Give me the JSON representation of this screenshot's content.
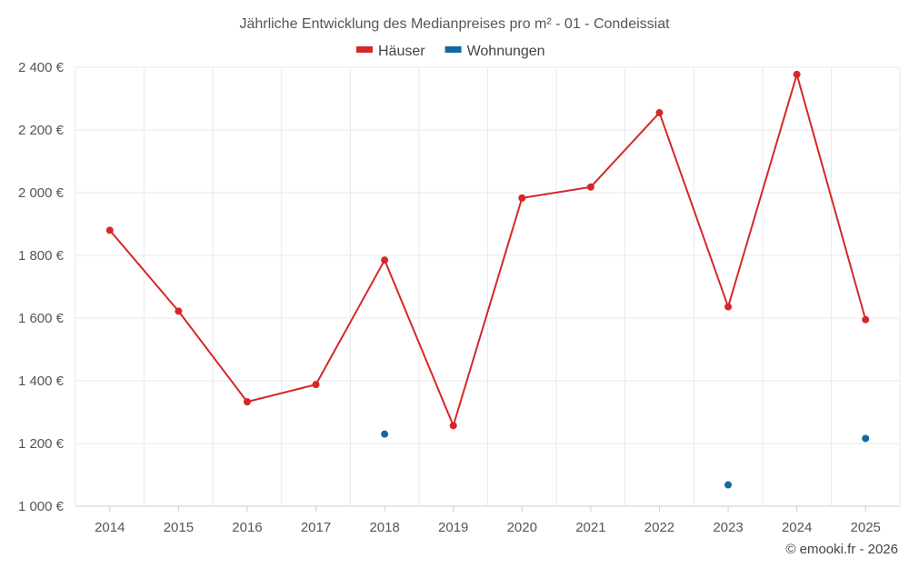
{
  "chart_data": {
    "type": "line",
    "title": "Jährliche Entwicklung des Medianpreises pro m² - 01 - Condeissiat",
    "categories": [
      "2014",
      "2015",
      "2016",
      "2017",
      "2018",
      "2019",
      "2020",
      "2021",
      "2022",
      "2023",
      "2024",
      "2025"
    ],
    "series": [
      {
        "name": "Häuser",
        "color": "#d62728",
        "line": true,
        "values": [
          1880,
          1622,
          1333,
          1388,
          1785,
          1257,
          1983,
          2018,
          2255,
          1636,
          2377,
          1595
        ]
      },
      {
        "name": "Wohnungen",
        "color": "#0f6aa3",
        "line": false,
        "values": [
          null,
          null,
          null,
          null,
          1230,
          null,
          null,
          null,
          null,
          1068,
          null,
          1216
        ]
      }
    ],
    "ylim": [
      1000,
      2400
    ],
    "yticks": [
      1000,
      1200,
      1400,
      1600,
      1800,
      2000,
      2200,
      2400
    ],
    "ytick_labels": [
      "1 000 €",
      "1 200 €",
      "1 400 €",
      "1 600 €",
      "1 800 €",
      "2 000 €",
      "2 200 €",
      "2 400 €"
    ],
    "xlabel": "",
    "ylabel": "",
    "grid": true,
    "legend_position": "top-center"
  },
  "credit": "© emooki.fr - 2026"
}
